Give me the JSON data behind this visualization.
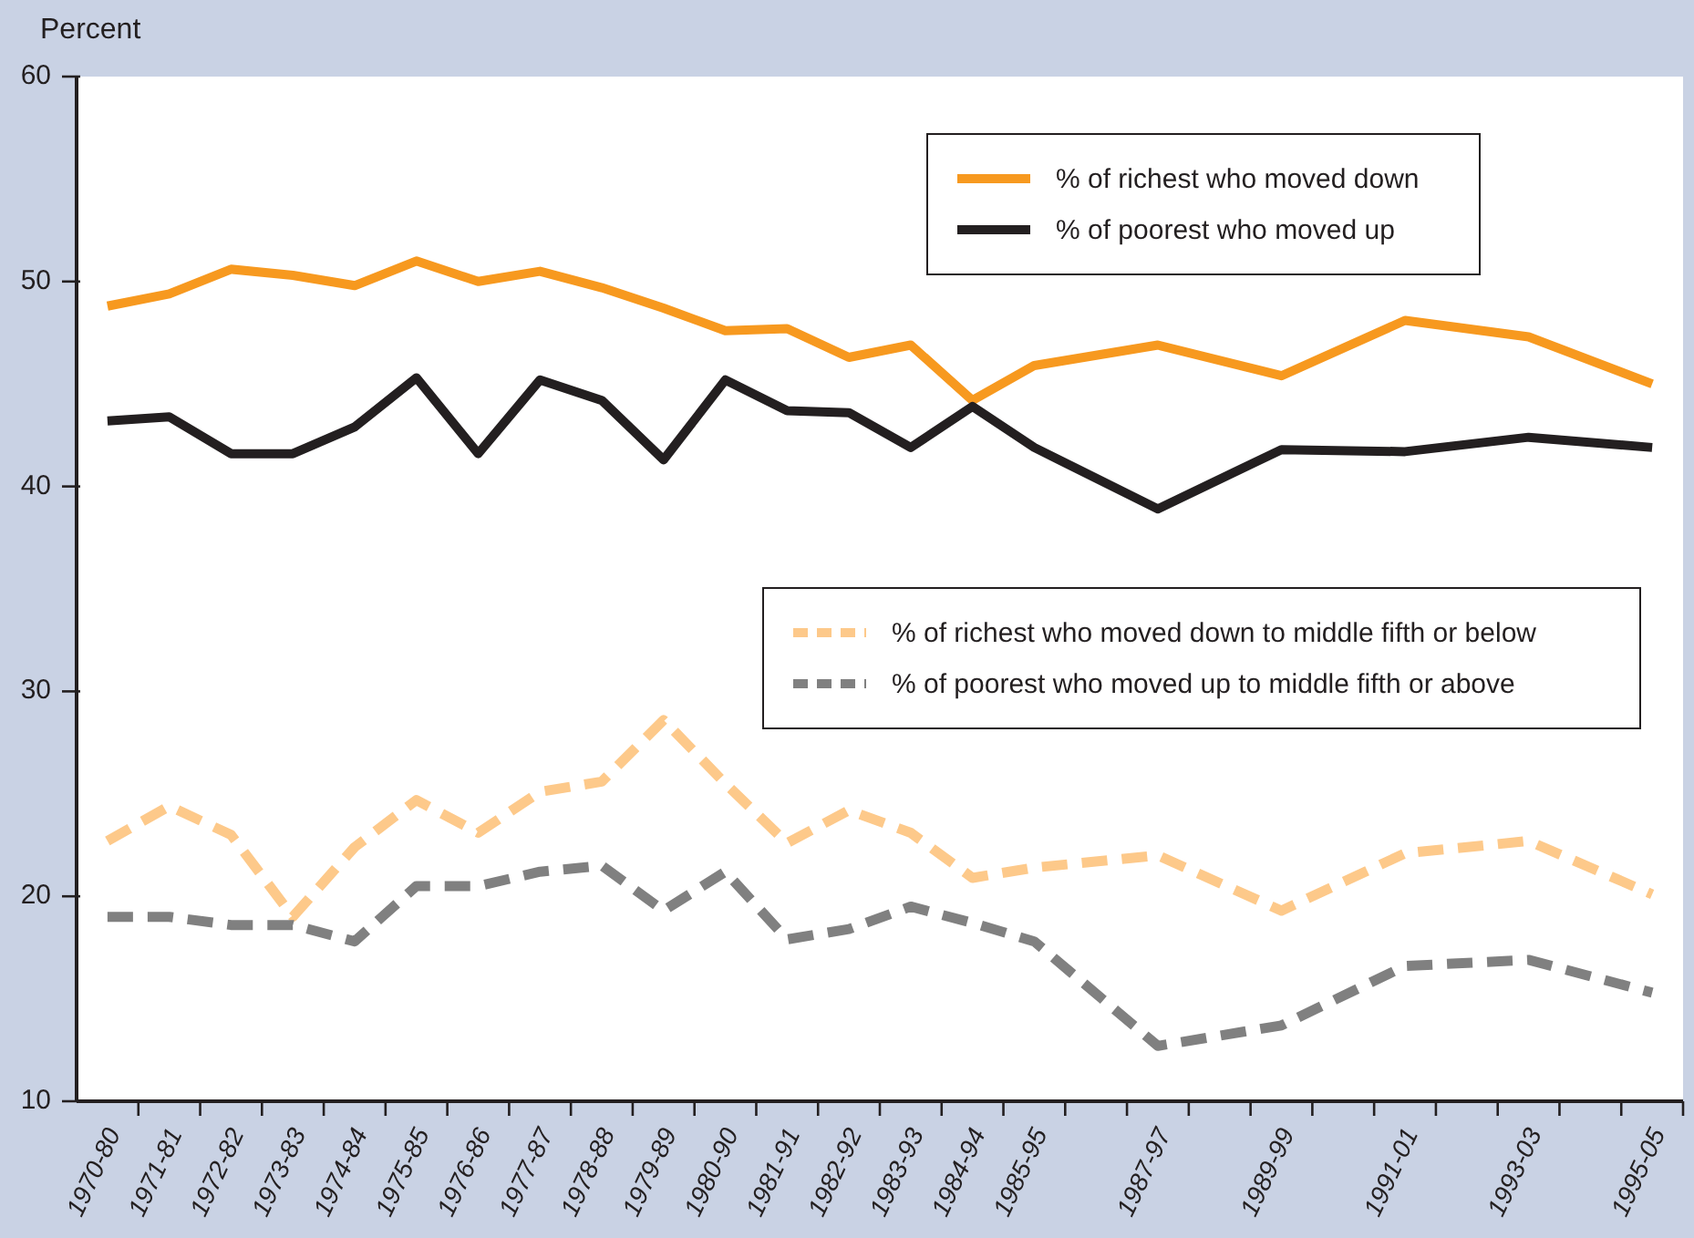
{
  "chart_data": {
    "type": "line",
    "ylabel": "Percent",
    "categories": [
      "1970-80",
      "1971-81",
      "1972-82",
      "1973-83",
      "1974-84",
      "1975-85",
      "1976-86",
      "1977-87",
      "1978-88",
      "1979-89",
      "1980-90",
      "1981-91",
      "1982-92",
      "1983-93",
      "1984-94",
      "1985-95",
      null,
      "1987-97",
      null,
      "1989-99",
      null,
      "1991-01",
      null,
      "1993-03",
      null,
      "1995-05"
    ],
    "series": [
      {
        "name": "% of richest who moved down",
        "color": "#f7991f",
        "line_style": "solid",
        "values": [
          48.8,
          49.4,
          50.6,
          50.3,
          49.8,
          51.0,
          50.0,
          50.5,
          49.7,
          48.7,
          47.6,
          47.7,
          46.3,
          46.9,
          44.2,
          45.9,
          null,
          46.9,
          null,
          45.4,
          null,
          48.1,
          null,
          47.3,
          null,
          45.0
        ]
      },
      {
        "name": "% of poorest who moved up",
        "color": "#231f20",
        "line_style": "solid",
        "values": [
          43.2,
          43.4,
          41.6,
          41.6,
          42.9,
          45.3,
          41.6,
          45.2,
          44.2,
          41.3,
          45.2,
          43.7,
          43.6,
          41.9,
          43.9,
          41.9,
          null,
          38.9,
          null,
          41.8,
          null,
          41.7,
          null,
          42.4,
          null,
          41.9
        ]
      },
      {
        "name": "% of richest who moved down to middle fifth or below",
        "color": "#fdc98a",
        "line_style": "dashed",
        "values": [
          22.7,
          24.4,
          23.0,
          19.0,
          22.4,
          24.7,
          23.1,
          25.1,
          25.6,
          28.6,
          25.5,
          22.6,
          24.2,
          23.1,
          20.9,
          21.4,
          null,
          22.0,
          null,
          19.3,
          null,
          22.1,
          null,
          22.7,
          null,
          20.1
        ]
      },
      {
        "name": "% of poorest who moved up to middle fifth or above",
        "color": "#808080",
        "line_style": "dashed",
        "values": [
          19.0,
          19.0,
          18.6,
          18.6,
          17.8,
          20.5,
          20.5,
          21.2,
          21.5,
          19.3,
          21.2,
          17.9,
          18.4,
          19.5,
          18.7,
          17.8,
          null,
          12.7,
          null,
          13.7,
          null,
          16.6,
          null,
          16.9,
          null,
          15.3
        ]
      }
    ],
    "ylim": [
      10,
      60
    ],
    "yticks": [
      10,
      20,
      30,
      40,
      50,
      60
    ],
    "grid": false,
    "legend": "right",
    "marker": "none"
  }
}
